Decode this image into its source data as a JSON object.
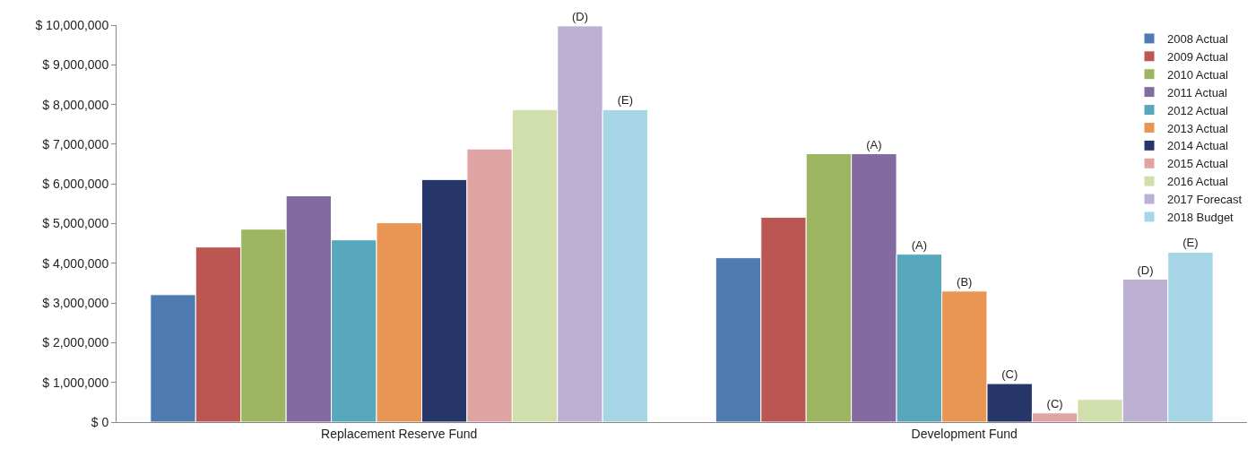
{
  "chart_data": {
    "type": "bar",
    "categories": [
      "Replacement Reserve Fund",
      "Development Fund"
    ],
    "series": [
      {
        "name": "2008 Actual",
        "color": "#4f7cb0",
        "values": [
          3210000,
          4140000
        ],
        "value_labels": [
          null,
          null
        ]
      },
      {
        "name": "2009 Actual",
        "color": "#bc5653",
        "values": [
          4410000,
          5160000
        ],
        "value_labels": [
          null,
          null
        ]
      },
      {
        "name": "2010 Actual",
        "color": "#9db460",
        "values": [
          4860000,
          6760000
        ],
        "value_labels": [
          null,
          null
        ]
      },
      {
        "name": "2011 Actual",
        "color": "#836ba0",
        "values": [
          5700000,
          6760000
        ],
        "value_labels": [
          null,
          "(A)"
        ]
      },
      {
        "name": "2012 Actual",
        "color": "#58a8bd",
        "values": [
          4590000,
          4230000
        ],
        "value_labels": [
          null,
          "(A)"
        ]
      },
      {
        "name": "2013 Actual",
        "color": "#e99554",
        "values": [
          5020000,
          3300000
        ],
        "value_labels": [
          null,
          "(B)"
        ]
      },
      {
        "name": "2014 Actual",
        "color": "#27366a",
        "values": [
          6110000,
          970000
        ],
        "value_labels": [
          null,
          "(C)"
        ]
      },
      {
        "name": "2015 Actual",
        "color": "#dfa3a2",
        "values": [
          6880000,
          230000
        ],
        "value_labels": [
          null,
          "(C)"
        ]
      },
      {
        "name": "2016 Actual",
        "color": "#d0dfab",
        "values": [
          7870000,
          570000
        ],
        "value_labels": [
          null,
          null
        ]
      },
      {
        "name": "2017 Forecast",
        "color": "#bdb0d3",
        "values": [
          9980000,
          3600000
        ],
        "value_labels": [
          "(D)",
          "(D)"
        ]
      },
      {
        "name": "2018 Budget",
        "color": "#a6d5e6",
        "values": [
          7870000,
          4280000
        ],
        "value_labels": [
          "(E)",
          "(E)"
        ]
      }
    ],
    "ylim": [
      0,
      10000000
    ],
    "yticks": [
      {
        "value": 0,
        "label": "$ 0"
      },
      {
        "value": 1000000,
        "label": "$ 1,000,000"
      },
      {
        "value": 2000000,
        "label": "$ 2,000,000"
      },
      {
        "value": 3000000,
        "label": "$ 3,000,000"
      },
      {
        "value": 4000000,
        "label": "$ 4,000,000"
      },
      {
        "value": 5000000,
        "label": "$ 5,000,000"
      },
      {
        "value": 6000000,
        "label": "$ 6,000,000"
      },
      {
        "value": 7000000,
        "label": "$ 7,000,000"
      },
      {
        "value": 8000000,
        "label": "$ 8,000,000"
      },
      {
        "value": 9000000,
        "label": "$ 9,000,000"
      },
      {
        "value": 10000000,
        "label": "$ 10,000,000"
      }
    ],
    "legend": "top right"
  }
}
